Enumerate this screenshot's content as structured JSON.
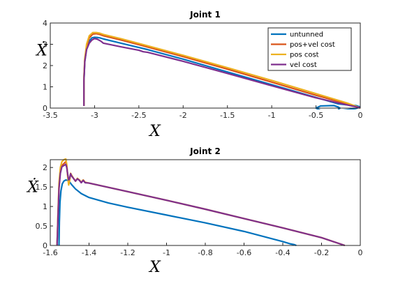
{
  "chart_data": [
    {
      "type": "line",
      "title": "Joint 1",
      "xlabel": "X",
      "ylabel": "Ẋ",
      "xlim": [
        -3.5,
        0
      ],
      "ylim": [
        0,
        4
      ],
      "xticks": [
        -3.5,
        -3,
        -2.5,
        -2,
        -1.5,
        -1,
        -0.5,
        0
      ],
      "xtick_labels": [
        "-3.5",
        "-3",
        "-2.5",
        "-2",
        "-1.5",
        "-1",
        "-0.5",
        "0"
      ],
      "yticks": [
        0,
        1,
        2,
        3,
        4
      ],
      "ytick_labels": [
        "0",
        "1",
        "2",
        "3",
        "4"
      ],
      "grid": false,
      "legend": {
        "position": "top-right"
      },
      "series": [
        {
          "name": "untunned",
          "color": "#0072BD",
          "x": [
            -3.12,
            -3.12,
            -3.11,
            -3.09,
            -3.06,
            -3.03,
            -3.0,
            -2.97,
            -2.94,
            -2.9,
            -2.8,
            -2.6,
            -2.4,
            -2.0,
            -1.5,
            -1.0,
            -0.5,
            -0.25,
            -0.15,
            -0.05,
            0.0,
            -0.05,
            -0.2,
            -0.3,
            -0.45,
            -0.5,
            -0.45,
            -0.3,
            -0.25,
            -0.23,
            -0.25
          ],
          "y": [
            0.1,
            1.3,
            2.2,
            2.8,
            3.15,
            3.3,
            3.33,
            3.32,
            3.3,
            3.25,
            3.15,
            2.95,
            2.75,
            2.3,
            1.7,
            1.1,
            0.5,
            0.2,
            0.15,
            0.12,
            0.05,
            -0.02,
            -0.1,
            -0.12,
            -0.1,
            0.0,
            0.1,
            0.12,
            0.05,
            0.0,
            -0.07
          ]
        },
        {
          "name": "pos+vel cost",
          "color": "#D95319",
          "x": [
            -3.12,
            -3.12,
            -3.11,
            -3.09,
            -3.06,
            -3.02,
            -2.98,
            -2.94,
            -2.9,
            -2.7,
            -2.5,
            -2.0,
            -1.5,
            -1.0,
            -0.5,
            -0.15,
            -0.05,
            0.0
          ],
          "y": [
            0.1,
            1.4,
            2.3,
            2.9,
            3.3,
            3.48,
            3.5,
            3.46,
            3.4,
            3.2,
            2.98,
            2.42,
            1.83,
            1.22,
            0.6,
            0.2,
            0.08,
            0.0
          ]
        },
        {
          "name": "pos cost",
          "color": "#EDB120",
          "x": [
            -3.12,
            -3.12,
            -3.11,
            -3.09,
            -3.06,
            -3.02,
            -2.98,
            -2.94,
            -2.9,
            -2.7,
            -2.5,
            -2.0,
            -1.5,
            -1.0,
            -0.5,
            -0.15,
            -0.05,
            0.0
          ],
          "y": [
            0.1,
            1.45,
            2.35,
            3.0,
            3.4,
            3.55,
            3.55,
            3.52,
            3.46,
            3.26,
            3.04,
            2.48,
            1.9,
            1.3,
            0.68,
            0.24,
            0.09,
            0.0
          ]
        },
        {
          "name": "vel cost",
          "color": "#7E2F8E",
          "x": [
            -3.12,
            -3.12,
            -3.11,
            -3.09,
            -3.06,
            -3.03,
            -3.0,
            -2.97,
            -2.93,
            -2.9,
            -2.7,
            -2.5,
            -2.45,
            -2.4,
            -2.0,
            -1.5,
            -1.0,
            -0.5,
            -0.15,
            -0.05,
            0.0
          ],
          "y": [
            0.1,
            1.3,
            2.2,
            2.75,
            3.05,
            3.2,
            3.27,
            3.24,
            3.15,
            3.05,
            2.88,
            2.72,
            2.65,
            2.62,
            2.2,
            1.63,
            1.05,
            0.48,
            0.15,
            0.06,
            0.02
          ]
        }
      ]
    },
    {
      "type": "line",
      "title": "Joint 2",
      "xlabel": "X",
      "ylabel": "Ẋ",
      "xlim": [
        -1.6,
        0
      ],
      "ylim": [
        0,
        2.2
      ],
      "xticks": [
        -1.6,
        -1.4,
        -1.2,
        -1,
        -0.8,
        -0.6,
        -0.4,
        -0.2,
        0
      ],
      "xtick_labels": [
        "-1.6",
        "-1.4",
        "-1.2",
        "-1",
        "-0.8",
        "-0.6",
        "-0.4",
        "-0.2",
        "0"
      ],
      "yticks": [
        0,
        0.5,
        1,
        1.5,
        2
      ],
      "ytick_labels": [
        "0",
        "0.5",
        "1",
        "1.5",
        "2"
      ],
      "grid": false,
      "series": [
        {
          "name": "untunned",
          "color": "#0072BD",
          "x": [
            -1.555,
            -1.553,
            -1.55,
            -1.545,
            -1.538,
            -1.53,
            -1.52,
            -1.51,
            -1.5,
            -1.49,
            -1.47,
            -1.44,
            -1.4,
            -1.3,
            -1.2,
            -1.0,
            -0.8,
            -0.6,
            -0.4,
            -0.36,
            -0.34,
            -0.33
          ],
          "y": [
            0.0,
            0.6,
            1.1,
            1.4,
            1.58,
            1.65,
            1.68,
            1.67,
            1.63,
            1.56,
            1.45,
            1.33,
            1.23,
            1.09,
            0.98,
            0.78,
            0.58,
            0.36,
            0.1,
            0.04,
            0.02,
            0.0
          ]
        },
        {
          "name": "pos+vel cost",
          "color": "#D95319",
          "x": [
            -1.565,
            -1.56,
            -1.555,
            -1.548,
            -1.54,
            -1.53,
            -1.52,
            -1.515,
            -1.51,
            -1.505,
            -1.5,
            -1.495,
            -1.49,
            -1.48,
            -1.47,
            -1.46,
            -1.45,
            -1.44,
            -1.43,
            -1.42,
            -1.4,
            -1.2,
            -1.0,
            -0.8,
            -0.6,
            -0.4,
            -0.2,
            -0.08
          ],
          "y": [
            0.0,
            0.8,
            1.5,
            1.9,
            2.05,
            2.1,
            2.15,
            2.05,
            1.8,
            1.65,
            1.72,
            1.85,
            1.8,
            1.72,
            1.65,
            1.72,
            1.68,
            1.62,
            1.68,
            1.62,
            1.6,
            1.38,
            1.16,
            0.93,
            0.69,
            0.45,
            0.2,
            0.0
          ]
        },
        {
          "name": "pos cost",
          "color": "#EDB120",
          "x": [
            -1.565,
            -1.56,
            -1.555,
            -1.548,
            -1.54,
            -1.53,
            -1.52,
            -1.515,
            -1.51,
            -1.505,
            -1.5,
            -1.495,
            -1.49,
            -1.48,
            -1.47,
            -1.46,
            -1.45,
            -1.44,
            -1.43,
            -1.42,
            -1.4,
            -1.2,
            -1.0,
            -0.8,
            -0.6,
            -0.4,
            -0.2,
            -0.08
          ],
          "y": [
            0.0,
            0.85,
            1.6,
            2.0,
            2.15,
            2.2,
            2.22,
            2.08,
            1.75,
            1.55,
            1.65,
            1.85,
            1.8,
            1.72,
            1.65,
            1.72,
            1.68,
            1.62,
            1.68,
            1.62,
            1.6,
            1.38,
            1.16,
            0.93,
            0.69,
            0.45,
            0.2,
            0.0
          ]
        },
        {
          "name": "vel cost",
          "color": "#7E2F8E",
          "x": [
            -1.565,
            -1.56,
            -1.555,
            -1.548,
            -1.54,
            -1.53,
            -1.52,
            -1.515,
            -1.51,
            -1.505,
            -1.5,
            -1.495,
            -1.49,
            -1.48,
            -1.47,
            -1.46,
            -1.45,
            -1.44,
            -1.43,
            -1.42,
            -1.4,
            -1.2,
            -1.0,
            -0.8,
            -0.6,
            -0.4,
            -0.2,
            -0.08
          ],
          "y": [
            0.0,
            0.75,
            1.45,
            1.85,
            2.02,
            2.05,
            2.08,
            2.0,
            1.82,
            1.68,
            1.72,
            1.84,
            1.78,
            1.72,
            1.65,
            1.71,
            1.67,
            1.61,
            1.67,
            1.61,
            1.6,
            1.38,
            1.16,
            0.93,
            0.69,
            0.45,
            0.2,
            0.0
          ]
        }
      ]
    }
  ]
}
